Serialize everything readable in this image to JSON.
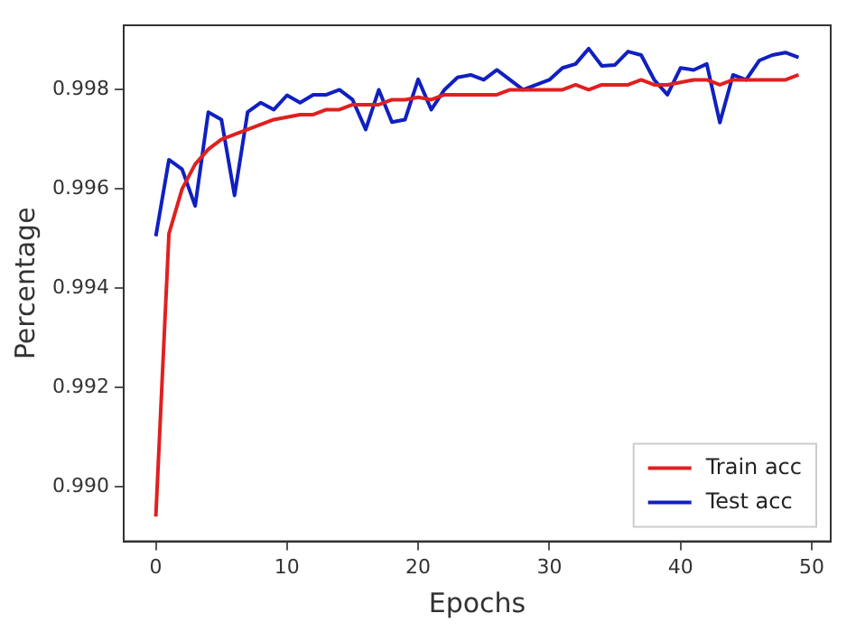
{
  "chart_data": {
    "type": "line",
    "xlabel": "Epochs",
    "ylabel": "Percentage",
    "x": [
      0,
      1,
      2,
      3,
      4,
      5,
      6,
      7,
      8,
      9,
      10,
      11,
      12,
      13,
      14,
      15,
      16,
      17,
      18,
      19,
      20,
      21,
      22,
      23,
      24,
      25,
      26,
      27,
      28,
      29,
      30,
      31,
      32,
      33,
      34,
      35,
      36,
      37,
      38,
      39,
      40,
      41,
      42,
      43,
      44,
      45,
      46,
      47,
      48,
      49
    ],
    "series": [
      {
        "name": "Train acc",
        "color": "#e02020",
        "values": [
          0.9894,
          0.9951,
          0.996,
          0.9965,
          0.9968,
          0.997,
          0.9971,
          0.9972,
          0.9973,
          0.9974,
          0.99745,
          0.9975,
          0.9975,
          0.9976,
          0.9976,
          0.9977,
          0.9977,
          0.9977,
          0.9978,
          0.9978,
          0.99785,
          0.9978,
          0.9979,
          0.9979,
          0.9979,
          0.9979,
          0.9979,
          0.998,
          0.998,
          0.998,
          0.998,
          0.998,
          0.9981,
          0.998,
          0.9981,
          0.9981,
          0.9981,
          0.9982,
          0.9981,
          0.9981,
          0.99815,
          0.9982,
          0.9982,
          0.9981,
          0.9982,
          0.9982,
          0.9982,
          0.9982,
          0.9982,
          0.9983
        ]
      },
      {
        "name": "Test acc",
        "color": "#1020c0",
        "values": [
          0.99505,
          0.99659,
          0.9964,
          0.99566,
          0.99755,
          0.9974,
          0.99587,
          0.99755,
          0.99774,
          0.9976,
          0.99789,
          0.99774,
          0.9979,
          0.9979,
          0.998,
          0.9978,
          0.9972,
          0.998,
          0.99735,
          0.9974,
          0.99821,
          0.9976,
          0.998,
          0.99825,
          0.9983,
          0.9982,
          0.9984,
          0.9982,
          0.998,
          0.9981,
          0.9982,
          0.99844,
          0.99852,
          0.99883,
          0.99848,
          0.9985,
          0.99877,
          0.9987,
          0.9982,
          0.9979,
          0.99844,
          0.9984,
          0.99852,
          0.99734,
          0.9983,
          0.9982,
          0.99859,
          0.9987,
          0.99875,
          0.99865
        ]
      }
    ],
    "xlim": [
      -2.45,
      51.45
    ],
    "xticks": [
      0,
      10,
      20,
      30,
      40,
      50
    ],
    "ylim": [
      0.9889,
      0.9993
    ],
    "yticks": [
      {
        "value": 0.99,
        "label": "0.990"
      },
      0.992,
      0.994,
      0.996,
      0.998
    ],
    "grid": false,
    "legend": "bottom right",
    "marker": "none",
    "line_style": "solid"
  }
}
